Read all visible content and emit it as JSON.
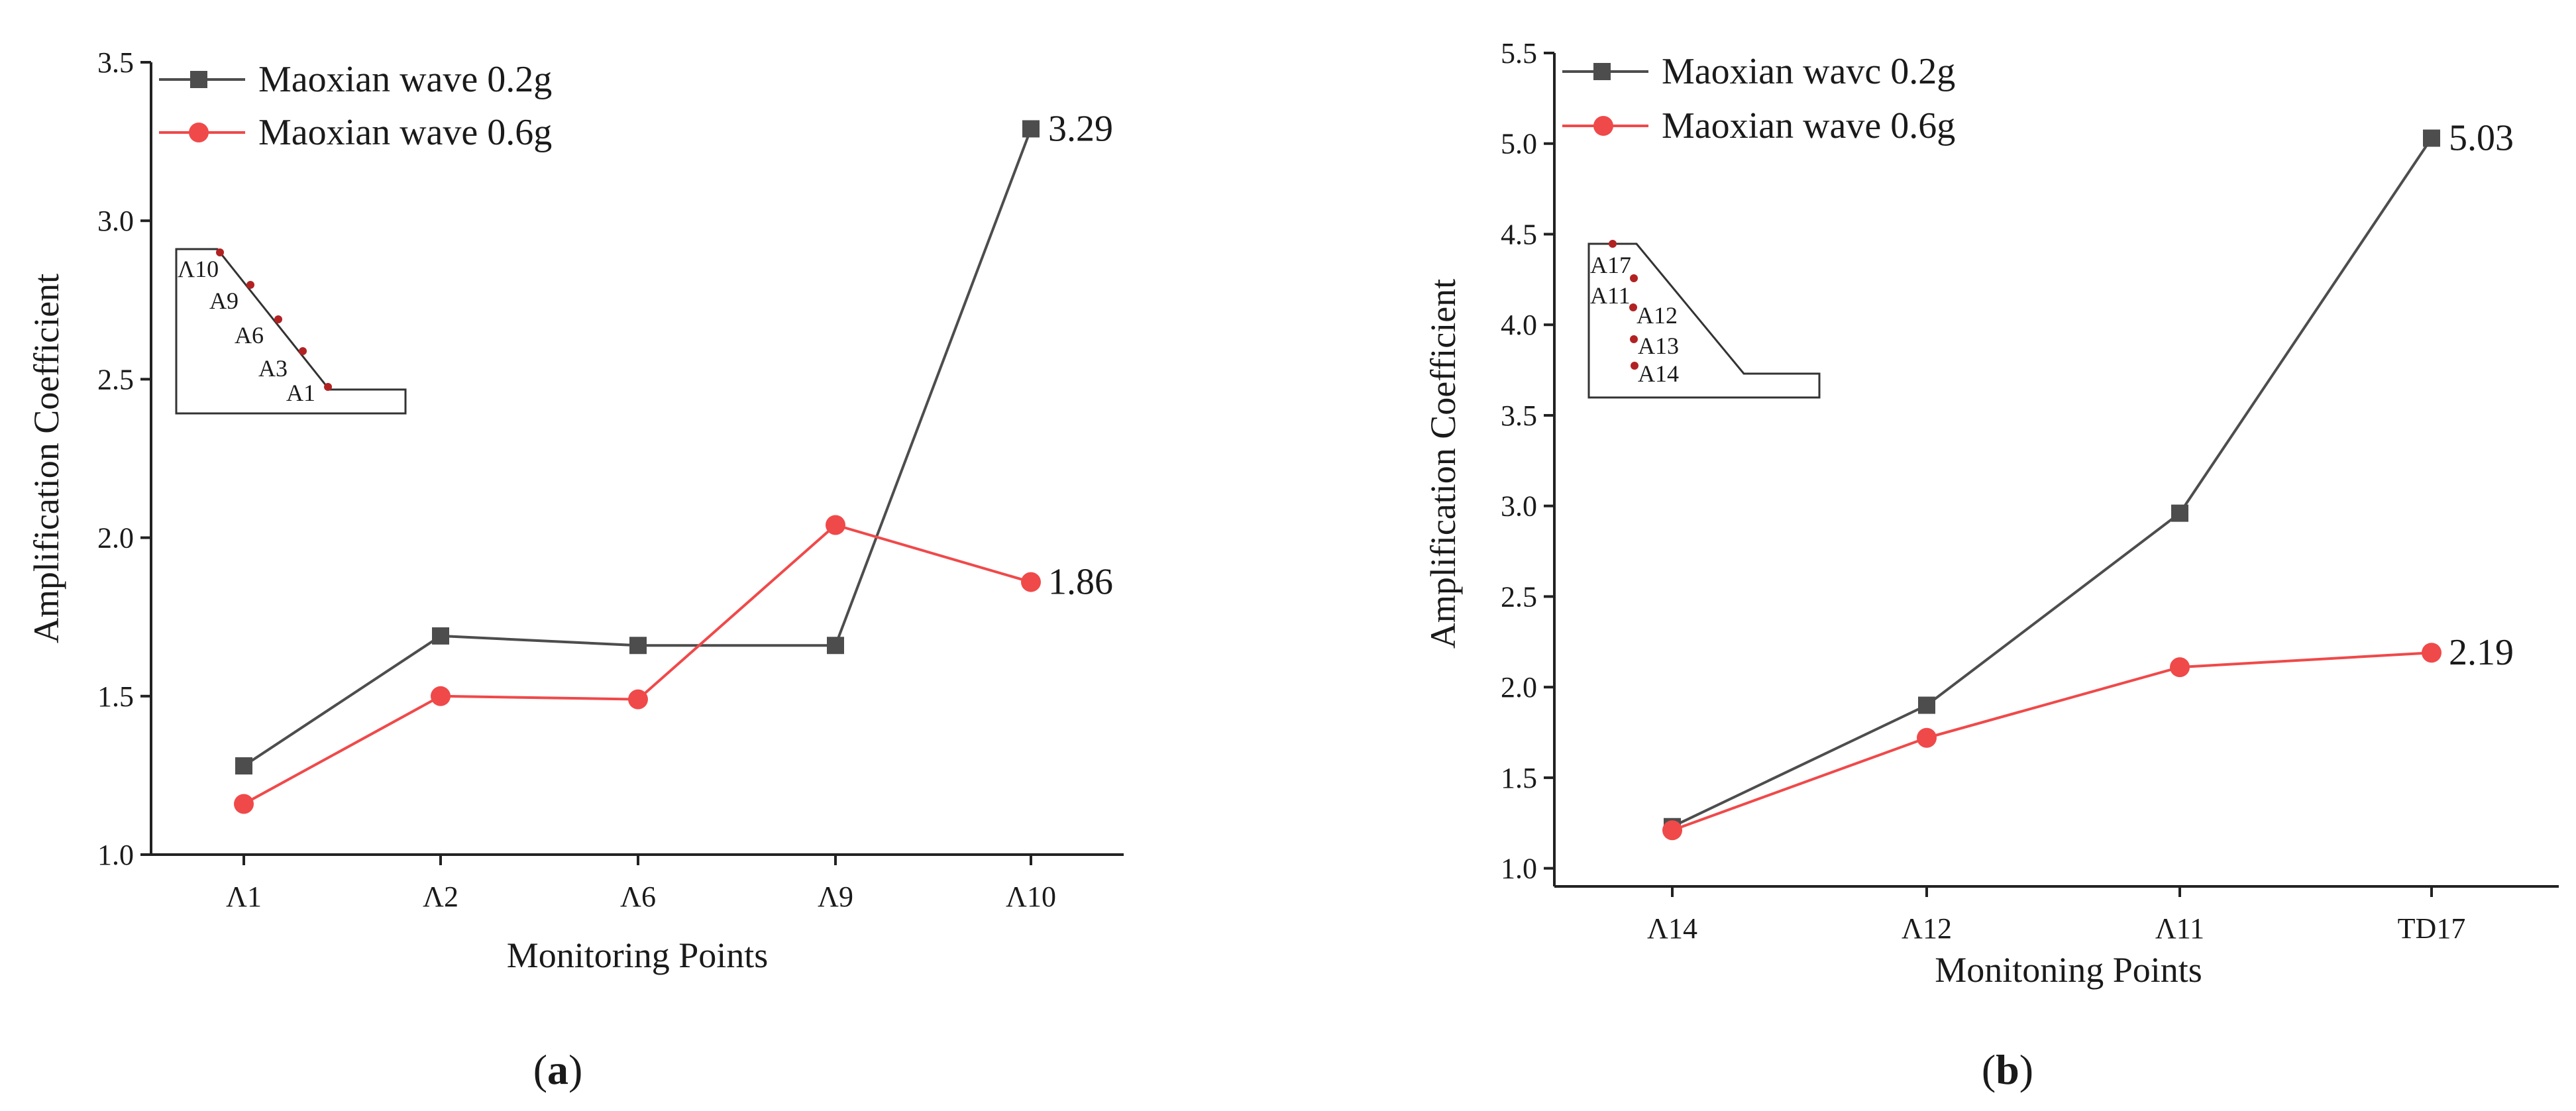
{
  "chart_data": [
    {
      "type": "line",
      "caption": "a",
      "xlabel": "Monitoring Points",
      "ylabel": "Amplification Coefficient",
      "categories": [
        "Λ1",
        "Λ2",
        "Λ6",
        "Λ9",
        "Λ10"
      ],
      "ylim": [
        1.0,
        3.5
      ],
      "yticks": [
        "1.0",
        "1.5",
        "2.0",
        "2.5",
        "3.0",
        "3.5"
      ],
      "ytick_values": [
        1.0,
        1.5,
        2.0,
        2.5,
        3.0,
        3.5
      ],
      "series": [
        {
          "name": "Maoxian wave 0.2g",
          "color": "#4d4d4d",
          "marker": "square",
          "values": [
            1.28,
            1.69,
            1.66,
            1.66,
            3.29
          ]
        },
        {
          "name": "Maoxian wave 0.6g",
          "color": "#f0494a",
          "marker": "circle",
          "values": [
            1.16,
            1.5,
            1.49,
            2.04,
            1.86
          ]
        }
      ],
      "annotations": [
        {
          "text": "3.29",
          "series": 0,
          "index": 4
        },
        {
          "text": "1.86",
          "series": 1,
          "index": 4
        }
      ],
      "legend_position": "top-left",
      "inset": {
        "labels": [
          "Λ10",
          "A9",
          "A6",
          "A3",
          "A1"
        ],
        "marker_color": "#b22222"
      }
    },
    {
      "type": "line",
      "caption": "b",
      "xlabel": "Monitoning Points",
      "ylabel": "Amplification Coefficient",
      "categories": [
        "Λ14",
        "Λ12",
        "Λ11",
        "TD17"
      ],
      "ylim": [
        0.9,
        5.5
      ],
      "yticks": [
        "1.0",
        "1.5",
        "2.0",
        "2.5",
        "3.0",
        "3.5",
        "4.0",
        "4.5",
        "5.0",
        "5.5"
      ],
      "ytick_values": [
        1.0,
        1.5,
        2.0,
        2.5,
        3.0,
        3.5,
        4.0,
        4.5,
        5.0,
        5.5
      ],
      "series": [
        {
          "name": "Maoxian wavc 0.2g",
          "color": "#4d4d4d",
          "marker": "square",
          "values": [
            1.23,
            1.9,
            2.96,
            5.03
          ]
        },
        {
          "name": "Maoxian wave 0.6g",
          "color": "#f0494a",
          "marker": "circle",
          "values": [
            1.21,
            1.72,
            2.11,
            2.19
          ]
        }
      ],
      "annotations": [
        {
          "text": "5.03",
          "series": 0,
          "index": 3
        },
        {
          "text": "2.19",
          "series": 1,
          "index": 3
        }
      ],
      "legend_position": "top-left",
      "inset": {
        "labels": [
          "A17",
          "A11",
          "A12",
          "A13",
          "A14"
        ],
        "marker_color": "#b22222"
      }
    }
  ]
}
